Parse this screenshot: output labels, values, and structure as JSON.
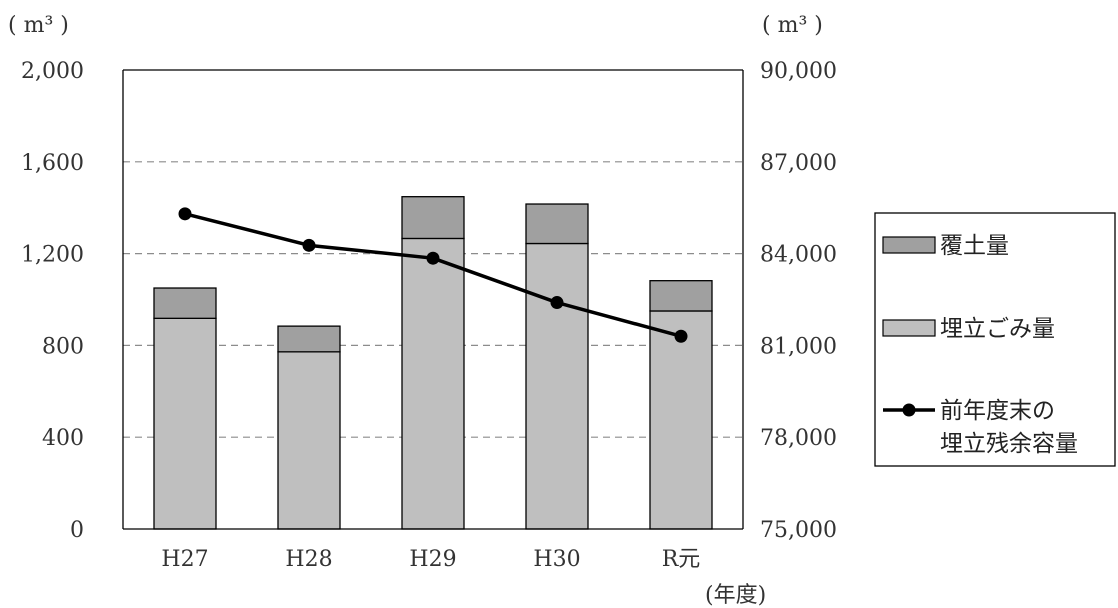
{
  "chart_data": {
    "type": "bar",
    "stacked": true,
    "categories": [
      "H27",
      "H28",
      "H29",
      "H30",
      "R元"
    ],
    "series": [
      {
        "name": "埋立ごみ量",
        "axis": "left",
        "type": "bar",
        "color": "#bfbfbf",
        "values": [
          918,
          772,
          1266,
          1244,
          950
        ]
      },
      {
        "name": "覆土量",
        "axis": "left",
        "type": "bar",
        "color": "#a0a0a0",
        "values": [
          132,
          112,
          182,
          172,
          132
        ]
      },
      {
        "name": "前年度末の\n埋立残余容量",
        "axis": "right",
        "type": "line",
        "color": "#000000",
        "values": [
          85300,
          84270,
          83850,
          82400,
          81300
        ]
      }
    ],
    "left_axis": {
      "unit": "( m³ )",
      "ylim": [
        0,
        2000
      ],
      "ticks": [
        "0",
        "400",
        "800",
        "1,200",
        "1,600",
        "2,000"
      ]
    },
    "right_axis": {
      "unit": "( m³ )",
      "ylim": [
        75000,
        90000
      ],
      "ticks": [
        "75,000",
        "78,000",
        "81,000",
        "84,000",
        "87,000",
        "90,000"
      ]
    },
    "xlabel": "(年度)",
    "grid": "dashed horizontal",
    "legend_position": "right"
  }
}
